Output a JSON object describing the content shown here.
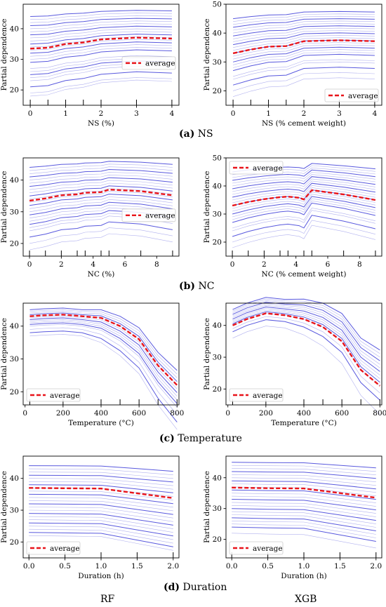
{
  "captions": [
    {
      "letter": "(a)",
      "text": "NS"
    },
    {
      "letter": "(b)",
      "text": "NC"
    },
    {
      "letter": "(c)",
      "text": "Temperature"
    },
    {
      "letter": "(d)",
      "text": "Duration"
    }
  ],
  "models": {
    "left": "RF",
    "right": "XGB"
  },
  "colors": {
    "ice": "#3b3bd8",
    "average": "#e8141a"
  },
  "chart_data": [
    {
      "type": "line",
      "ylabel": "Partial dependence",
      "xlabel": "NS (%)",
      "xlim": [
        -0.2,
        4.2
      ],
      "ylim": [
        15,
        48
      ],
      "xticks": [
        0,
        1,
        2,
        3,
        4
      ],
      "yticks": [
        20,
        30,
        40
      ],
      "x": [
        0,
        0.5,
        1,
        1.5,
        2,
        3,
        4
      ],
      "average": [
        33.5,
        33.8,
        35.0,
        35.5,
        36.5,
        37.1,
        36.8
      ],
      "legend": "average",
      "legend_pos": "middle-right",
      "rug": [
        0,
        0.5,
        1,
        1.5,
        2,
        3,
        4
      ],
      "ice_bases": [
        44,
        43,
        42,
        41,
        40,
        39,
        38,
        37,
        36,
        35,
        34,
        33,
        32,
        31,
        30,
        29,
        27,
        26,
        25,
        24,
        23,
        21,
        19,
        18
      ]
    },
    {
      "type": "line",
      "ylabel": "Partial dependence",
      "xlabel": "NS (% cement weight)",
      "xlim": [
        -0.2,
        4.2
      ],
      "ylim": [
        15,
        50
      ],
      "xticks": [
        0,
        1,
        2,
        3,
        4
      ],
      "yticks": [
        20,
        30,
        40,
        50
      ],
      "x": [
        0,
        0.5,
        1,
        1.5,
        2,
        3,
        4
      ],
      "average": [
        33.0,
        34.3,
        35.3,
        35.5,
        37.2,
        37.5,
        37.2
      ],
      "legend": "average",
      "legend_pos": "bottom-right",
      "rug": [
        0,
        0.5,
        1,
        1.5,
        2,
        3,
        4
      ],
      "ice_bases": [
        45,
        44,
        43,
        42,
        41,
        40,
        39,
        38,
        37,
        36,
        35,
        34,
        33,
        32,
        31,
        30,
        29,
        28,
        27,
        25,
        24,
        22,
        20,
        18
      ]
    },
    {
      "type": "line",
      "ylabel": "Partial dependence",
      "xlabel": "NC (%)",
      "xlim": [
        -0.4,
        9.4
      ],
      "ylim": [
        16,
        47
      ],
      "xticks": [
        0,
        2,
        4,
        6,
        8
      ],
      "yticks": [
        20,
        30,
        40
      ],
      "x": [
        0,
        1,
        2,
        3,
        3.5,
        4.5,
        5,
        7,
        9
      ],
      "average": [
        33.5,
        34.2,
        35.2,
        35.5,
        36.0,
        36.2,
        37.0,
        36.5,
        35.2
      ],
      "legend": "average",
      "legend_pos": "middle-right",
      "rug": [
        0,
        1,
        2,
        3,
        3.5,
        4.5,
        5,
        7,
        9
      ],
      "ice_bases": [
        44,
        43,
        42,
        41,
        40,
        39,
        38,
        37,
        36,
        35,
        34,
        33,
        32,
        31,
        30,
        29,
        28,
        27,
        26,
        25,
        24,
        22,
        20,
        18
      ]
    },
    {
      "type": "line",
      "ylabel": "Partial dependence",
      "xlabel": "NC (% cement weight)",
      "xlim": [
        -0.4,
        9.4
      ],
      "ylim": [
        15,
        50
      ],
      "xticks": [
        0,
        2,
        4,
        6,
        8
      ],
      "yticks": [
        20,
        30,
        40,
        50
      ],
      "x": [
        0,
        1,
        2,
        3,
        3.5,
        4.2,
        4.5,
        5,
        7,
        9
      ],
      "average": [
        33.0,
        34.3,
        35.3,
        36.0,
        36.2,
        35.8,
        35.2,
        38.5,
        37.0,
        35.0
      ],
      "legend": "average",
      "legend_pos": "top-left",
      "rug": [
        0,
        1,
        2,
        3,
        3.5,
        4.5,
        5,
        7,
        9
      ],
      "ice_bases": [
        45,
        44,
        43,
        42,
        41,
        40,
        39,
        38,
        37,
        36,
        35,
        34,
        33,
        32,
        31,
        30,
        29,
        28,
        27,
        25,
        24,
        22,
        20,
        18
      ]
    },
    {
      "type": "line",
      "ylabel": "Partial dependence",
      "xlabel": "Temperature (°C)",
      "xlim": [
        -10,
        810
      ],
      "ylim": [
        16,
        47
      ],
      "xticks": [
        0,
        200,
        400,
        600,
        800
      ],
      "yticks": [
        20,
        30,
        40
      ],
      "x": [
        25,
        100,
        200,
        300,
        400,
        500,
        600,
        700,
        800
      ],
      "average": [
        43.0,
        43.3,
        43.5,
        43.0,
        42.5,
        40.0,
        36.0,
        28.0,
        22.0
      ],
      "legend": "average",
      "legend_pos": "bottom-left",
      "rug": [
        25,
        200,
        400,
        500,
        600,
        700,
        800
      ],
      "ice_bases": [
        45,
        44.5,
        44,
        43.5,
        43,
        42.5,
        42,
        41.5,
        41,
        40.5,
        40,
        39,
        38,
        37
      ]
    },
    {
      "type": "line",
      "ylabel": "Partial dependence",
      "xlabel": "Temperature (°C)",
      "xlim": [
        -10,
        810
      ],
      "ylim": [
        15,
        47
      ],
      "xticks": [
        0,
        200,
        400,
        600,
        800
      ],
      "yticks": [
        20,
        30,
        40
      ],
      "x": [
        25,
        100,
        200,
        300,
        400,
        500,
        600,
        700,
        800
      ],
      "average": [
        40.0,
        42.0,
        43.8,
        43.2,
        42.0,
        39.5,
        35.0,
        26.0,
        21.0
      ],
      "legend": "average",
      "legend_pos": "bottom-left",
      "rug": [
        25,
        200,
        400,
        500,
        600,
        700,
        800
      ],
      "ice_bases": [
        45,
        44.5,
        44,
        43.5,
        43,
        42.5,
        42,
        41.5,
        41,
        40.5,
        40,
        39,
        38,
        36
      ]
    },
    {
      "type": "line",
      "ylabel": "Partial dependence",
      "xlabel": "Duration (h)",
      "xlim": [
        -0.08,
        2.08
      ],
      "ylim": [
        15,
        47
      ],
      "xticks": [
        0.0,
        0.5,
        1.0,
        1.5,
        2.0
      ],
      "yticks": [
        20,
        30,
        40
      ],
      "x": [
        0,
        0.5,
        1,
        1.5,
        2
      ],
      "average": [
        37.0,
        36.9,
        36.8,
        35.3,
        33.8
      ],
      "legend": "average",
      "legend_pos": "bottom-left",
      "rug": [
        0,
        0.5,
        1,
        1.5,
        2
      ],
      "ice_bases": [
        44,
        43,
        42,
        41,
        40,
        39,
        38,
        37,
        36,
        35,
        34,
        33,
        32,
        31,
        30,
        29,
        28,
        27,
        26,
        25,
        24,
        23,
        22
      ]
    },
    {
      "type": "line",
      "ylabel": "Partial dependence",
      "xlabel": "Duration (h)",
      "xlim": [
        -0.08,
        2.08
      ],
      "ylim": [
        14,
        47
      ],
      "xticks": [
        0.0,
        0.5,
        1.0,
        1.5,
        2.0
      ],
      "yticks": [
        20,
        30,
        40
      ],
      "x": [
        0,
        0.5,
        1,
        1.5,
        2
      ],
      "average": [
        36.8,
        36.6,
        36.5,
        35.0,
        33.5
      ],
      "legend": "average",
      "legend_pos": "bottom-left",
      "rug": [
        0,
        0.5,
        1,
        1.5,
        2
      ],
      "ice_bases": [
        45,
        44,
        43,
        42,
        41,
        40,
        39,
        38,
        37,
        36,
        35,
        34,
        33,
        32,
        31,
        30,
        29,
        28,
        27,
        26,
        25,
        24,
        22
      ]
    }
  ]
}
